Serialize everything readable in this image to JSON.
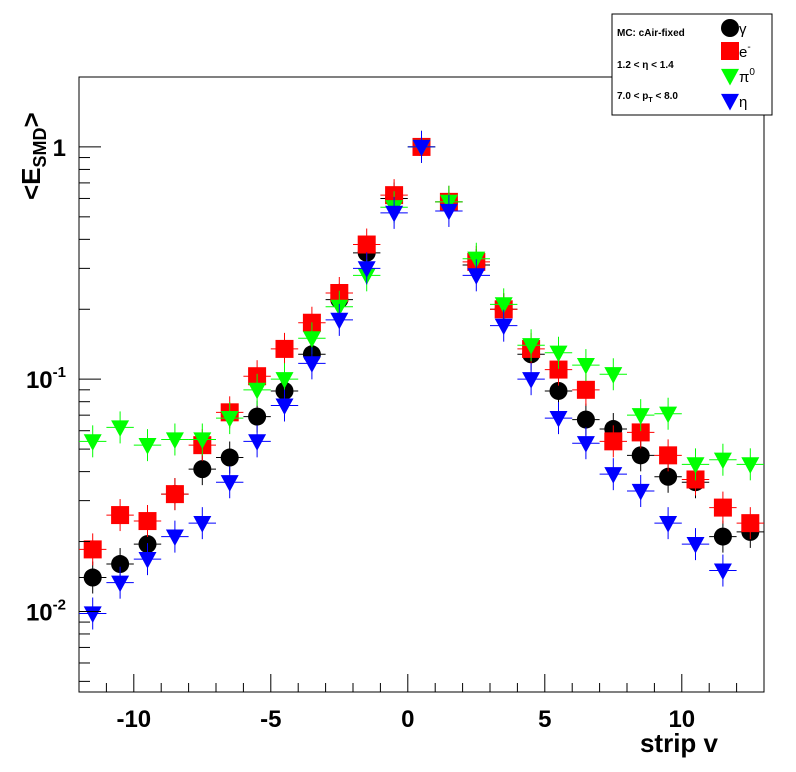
{
  "chart_data": {
    "type": "scatter",
    "xlabel": "strip v",
    "ylabel_main": "<E",
    "ylabel_sub": "SMD",
    "ylabel_end": ">",
    "x_tick_labels": [
      "-10",
      "-5",
      "0",
      "5",
      "10"
    ],
    "x_ticks": [
      -10,
      -5,
      0,
      5,
      10
    ],
    "y_tick_labels": [
      {
        "value": 1,
        "base": "1",
        "exp": ""
      },
      {
        "value": 0.1,
        "base": "10",
        "exp": "-1"
      },
      {
        "value": 0.01,
        "base": "10",
        "exp": "-2"
      }
    ],
    "xlim": [
      -12,
      13
    ],
    "ylim": [
      0.0045,
      2.0
    ],
    "yscale": "log",
    "grid": false,
    "legend": {
      "placement": "top-right",
      "lines": [
        {
          "text": "MC: cAir-fixed"
        },
        {
          "text": "1.2 < η < 1.4"
        },
        {
          "text": "7.0 < p",
          "sub": "T",
          "after": " < 8.0"
        }
      ]
    },
    "series": [
      {
        "name": "γ",
        "marker": "circle",
        "color": "#000000",
        "x": [
          -11.5,
          -10.5,
          -9.5,
          -8.5,
          -7.5,
          -6.5,
          -5.5,
          -4.5,
          -3.5,
          -2.5,
          -1.5,
          -0.5,
          0.5,
          1.5,
          2.5,
          3.5,
          4.5,
          5.5,
          6.5,
          7.5,
          8.5,
          9.5,
          10.5,
          11.5,
          12.5
        ],
        "y": [
          0.014,
          0.016,
          0.0195,
          0.032,
          0.041,
          0.046,
          0.069,
          0.089,
          0.128,
          0.22,
          0.35,
          0.6,
          1.0,
          0.58,
          0.31,
          0.2,
          0.128,
          0.089,
          0.067,
          0.061,
          0.047,
          0.038,
          0.036,
          0.021,
          0.022
        ]
      },
      {
        "name": "e-",
        "legend_label": "e",
        "legend_sup": "-",
        "marker": "square",
        "color": "#ff0000",
        "x": [
          -11.5,
          -10.5,
          -9.5,
          -8.5,
          -7.5,
          -6.5,
          -5.5,
          -4.5,
          -3.5,
          -2.5,
          -1.5,
          -0.5,
          0.5,
          1.5,
          2.5,
          3.5,
          4.5,
          5.5,
          6.5,
          7.5,
          8.5,
          9.5,
          10.5,
          11.5,
          12.5
        ],
        "y": [
          0.0185,
          0.026,
          0.0245,
          0.032,
          0.052,
          0.072,
          0.103,
          0.135,
          0.175,
          0.235,
          0.38,
          0.62,
          1.0,
          0.58,
          0.32,
          0.2,
          0.135,
          0.11,
          0.09,
          0.054,
          0.059,
          0.047,
          0.037,
          0.028,
          0.024
        ]
      },
      {
        "name": "π0",
        "legend_label": "π",
        "legend_sup": "0",
        "marker": "triangle-down",
        "color": "#00ff00",
        "x": [
          -11.5,
          -10.5,
          -9.5,
          -8.5,
          -7.5,
          -6.5,
          -5.5,
          -4.5,
          -3.5,
          -2.5,
          -1.5,
          -0.5,
          0.5,
          1.5,
          2.5,
          3.5,
          4.5,
          5.5,
          6.5,
          7.5,
          8.5,
          9.5,
          10.5,
          11.5,
          12.5
        ],
        "y": [
          0.054,
          0.062,
          0.052,
          0.055,
          0.055,
          0.068,
          0.09,
          0.1,
          0.15,
          0.205,
          0.28,
          0.55,
          1.0,
          0.58,
          0.33,
          0.21,
          0.14,
          0.13,
          0.115,
          0.105,
          0.07,
          0.071,
          0.043,
          0.045,
          0.043
        ]
      },
      {
        "name": "η",
        "marker": "triangle-down",
        "color": "#0000ff",
        "x": [
          -11.5,
          -10.5,
          -9.5,
          -8.5,
          -7.5,
          -6.5,
          -5.5,
          -4.5,
          -3.5,
          -2.5,
          -1.5,
          -0.5,
          0.5,
          1.5,
          2.5,
          3.5,
          4.5,
          5.5,
          6.5,
          7.5,
          8.5,
          9.5,
          10.5,
          11.5,
          12.5
        ],
        "y": [
          0.0098,
          0.0133,
          0.0168,
          0.021,
          0.024,
          0.036,
          0.054,
          0.077,
          0.117,
          0.18,
          0.3,
          0.52,
          1.0,
          0.53,
          0.28,
          0.17,
          0.1,
          0.068,
          0.053,
          0.039,
          0.033,
          0.024,
          0.0195,
          0.015,
          null
        ]
      }
    ]
  }
}
